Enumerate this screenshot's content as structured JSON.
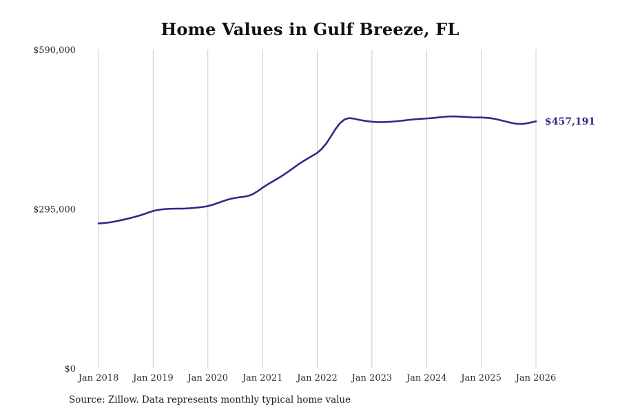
{
  "title": "Home Values in Gulf Breeze, FL",
  "source": "Source: Zillow. Data represents monthly typical home value",
  "end_label": "$457,191",
  "colors": {
    "line": "#2e2a8a",
    "end_label": "#2e2a8a",
    "gridline": "#cccccc",
    "tick_text": "#2b2b2b",
    "title_text": "#111111"
  },
  "chart_data": {
    "type": "line",
    "title": "Home Values in Gulf Breeze, FL",
    "xlabel": "",
    "ylabel": "",
    "x_unit": "month",
    "x_start": "2018-01",
    "x_end": "2026-01",
    "x_ticks": [
      "Jan 2018",
      "Jan 2019",
      "Jan 2020",
      "Jan 2021",
      "Jan 2022",
      "Jan 2023",
      "Jan 2024",
      "Jan 2025",
      "Jan 2026"
    ],
    "y_ticks": [
      {
        "value": 0,
        "label": "$0"
      },
      {
        "value": 295000,
        "label": "$295,000"
      },
      {
        "value": 590000,
        "label": "$590,000"
      }
    ],
    "ylim": [
      0,
      590000
    ],
    "grid": "vertical-only",
    "legend": "none",
    "series": [
      {
        "name": "Typical home value",
        "values": [
          268000,
          268600,
          269500,
          270800,
          272400,
          274200,
          276100,
          278100,
          280300,
          282800,
          285500,
          288400,
          291200,
          293000,
          294200,
          295000,
          295400,
          295500,
          295500,
          295700,
          296200,
          296900,
          297800,
          298800,
          300200,
          302500,
          305400,
          308400,
          311200,
          313600,
          315400,
          316600,
          317600,
          319500,
          323000,
          328200,
          334200,
          339700,
          344700,
          349700,
          354700,
          360200,
          366200,
          372200,
          378200,
          383700,
          388700,
          393700,
          398700,
          406200,
          416200,
          429200,
          442700,
          453700,
          460700,
          463200,
          462200,
          460200,
          458700,
          457400,
          456400,
          455800,
          455600,
          455800,
          456300,
          457000,
          457800,
          458700,
          459700,
          460600,
          461300,
          461900,
          462400,
          463000,
          463800,
          464800,
          465600,
          466100,
          466300,
          466000,
          465500,
          465000,
          464500,
          464300,
          464200,
          463800,
          463000,
          461600,
          459700,
          457600,
          455500,
          453600,
          452400,
          452300,
          453400,
          455200,
          457191
        ]
      }
    ],
    "last_value": 457191
  }
}
